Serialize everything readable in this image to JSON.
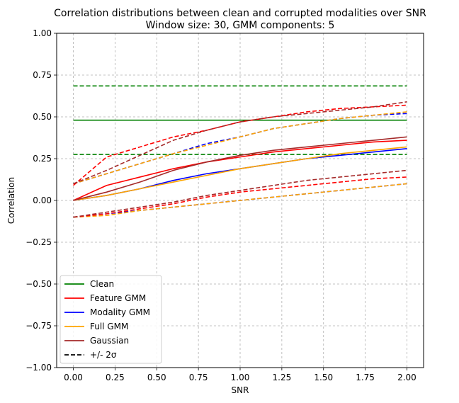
{
  "chart_data": {
    "type": "line",
    "title": "Correlation distributions between clean and corrupted modalities over SNR",
    "subtitle": "Window size: 30, GMM components: 5",
    "xlabel": "SNR",
    "ylabel": "Correlation",
    "xlim": [
      -0.1,
      2.1
    ],
    "ylim": [
      -1.0,
      1.0
    ],
    "x_ticks": [
      "0.00",
      "0.25",
      "0.50",
      "0.75",
      "1.00",
      "1.25",
      "1.50",
      "1.75",
      "2.00"
    ],
    "y_ticks": [
      "1.00",
      "0.75",
      "0.50",
      "0.25",
      "0.00",
      "−0.25",
      "−0.50",
      "−0.75",
      "−1.00"
    ],
    "grid": true,
    "grid_style": "dashed",
    "legend_position": "lower-left",
    "legend": [
      {
        "label": "Clean",
        "color": "#008000",
        "style": "solid"
      },
      {
        "label": "Feature GMM",
        "color": "#ff0000",
        "style": "solid"
      },
      {
        "label": "Modality GMM",
        "color": "#0000ff",
        "style": "solid"
      },
      {
        "label": "Full GMM",
        "color": "#ffa500",
        "style": "solid"
      },
      {
        "label": "Gaussian",
        "color": "#a52a2a",
        "style": "solid"
      },
      {
        "label": "+/- 2σ",
        "color": "#000000",
        "style": "dashed"
      }
    ],
    "x": [
      0.0,
      0.2,
      0.4,
      0.6,
      0.8,
      1.0,
      1.2,
      1.4,
      1.6,
      1.8,
      2.0
    ],
    "series": [
      {
        "name": "Clean",
        "color": "#008000",
        "style": "solid",
        "values": [
          0.48,
          0.48,
          0.48,
          0.48,
          0.48,
          0.48,
          0.48,
          0.48,
          0.48,
          0.48,
          0.48
        ]
      },
      {
        "color": "#008000",
        "style": "dashed",
        "values": [
          0.685,
          0.685,
          0.685,
          0.685,
          0.685,
          0.685,
          0.685,
          0.685,
          0.685,
          0.685,
          0.685
        ]
      },
      {
        "color": "#008000",
        "style": "dashed",
        "values": [
          0.275,
          0.275,
          0.275,
          0.275,
          0.275,
          0.275,
          0.275,
          0.275,
          0.275,
          0.275,
          0.275
        ]
      },
      {
        "name": "Modality GMM",
        "color": "#0000ff",
        "style": "solid",
        "values": [
          0.0,
          0.03,
          0.07,
          0.12,
          0.16,
          0.19,
          0.22,
          0.25,
          0.27,
          0.29,
          0.31
        ]
      },
      {
        "color": "#0000ff",
        "style": "dashed",
        "values": [
          0.1,
          0.16,
          0.22,
          0.28,
          0.34,
          0.38,
          0.43,
          0.46,
          0.49,
          0.51,
          0.52
        ]
      },
      {
        "color": "#0000ff",
        "style": "dashed",
        "values": [
          -0.1,
          -0.08,
          -0.06,
          -0.04,
          -0.02,
          0.0,
          0.02,
          0.04,
          0.06,
          0.08,
          0.1
        ]
      },
      {
        "name": "Full GMM",
        "color": "#ffa500",
        "style": "solid",
        "values": [
          0.0,
          0.03,
          0.07,
          0.11,
          0.15,
          0.19,
          0.22,
          0.25,
          0.28,
          0.3,
          0.32
        ]
      },
      {
        "color": "#ffa500",
        "style": "dashed",
        "values": [
          0.1,
          0.16,
          0.22,
          0.28,
          0.33,
          0.38,
          0.43,
          0.46,
          0.49,
          0.51,
          0.53
        ]
      },
      {
        "color": "#ffa500",
        "style": "dashed",
        "values": [
          -0.1,
          -0.09,
          -0.06,
          -0.04,
          -0.02,
          0.0,
          0.02,
          0.04,
          0.06,
          0.08,
          0.1
        ]
      },
      {
        "name": "Feature GMM",
        "color": "#ff0000",
        "style": "solid",
        "values": [
          0.0,
          0.09,
          0.14,
          0.19,
          0.23,
          0.26,
          0.29,
          0.31,
          0.33,
          0.35,
          0.36
        ]
      },
      {
        "color": "#ff0000",
        "style": "dashed",
        "values": [
          0.09,
          0.26,
          0.32,
          0.38,
          0.42,
          0.47,
          0.5,
          0.53,
          0.55,
          0.56,
          0.57
        ]
      },
      {
        "color": "#ff0000",
        "style": "dashed",
        "values": [
          -0.1,
          -0.08,
          -0.05,
          -0.02,
          0.02,
          0.05,
          0.07,
          0.09,
          0.11,
          0.13,
          0.14
        ]
      },
      {
        "name": "Gaussian",
        "color": "#a52a2a",
        "style": "solid",
        "values": [
          0.0,
          0.05,
          0.11,
          0.18,
          0.23,
          0.27,
          0.3,
          0.32,
          0.34,
          0.36,
          0.38
        ]
      },
      {
        "color": "#a52a2a",
        "style": "dashed",
        "values": [
          0.1,
          0.18,
          0.27,
          0.36,
          0.42,
          0.47,
          0.5,
          0.52,
          0.54,
          0.56,
          0.59
        ]
      },
      {
        "color": "#a52a2a",
        "style": "dashed",
        "values": [
          -0.1,
          -0.07,
          -0.04,
          -0.01,
          0.03,
          0.06,
          0.09,
          0.12,
          0.14,
          0.16,
          0.18
        ]
      }
    ]
  }
}
